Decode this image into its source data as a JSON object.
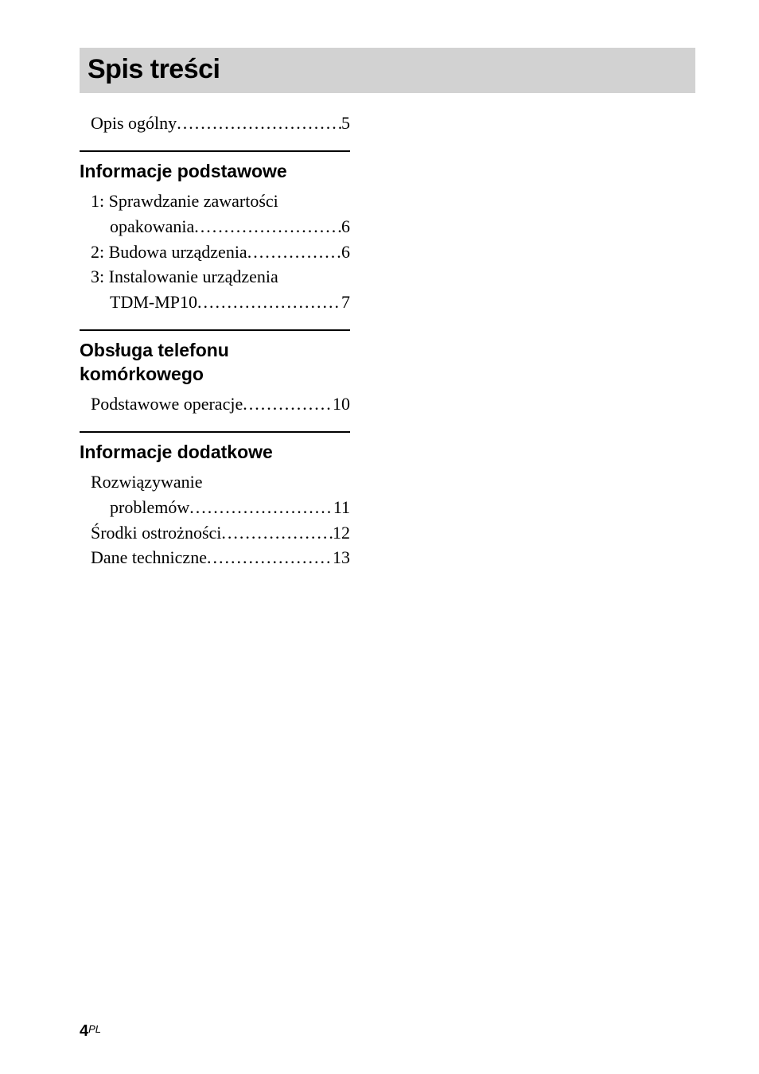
{
  "title": "Spis treści",
  "top_entry": {
    "label": "Opis ogólny",
    "page": "5"
  },
  "sections": [
    {
      "heading": "Informacje podstawowe",
      "entries": [
        {
          "lines": [
            "1: Sprawdzanie zawartości",
            "opakowania"
          ],
          "page": "6"
        },
        {
          "lines": [
            "2: Budowa urządzenia"
          ],
          "page": "6"
        },
        {
          "lines": [
            "3: Instalowanie urządzenia",
            "TDM-MP10"
          ],
          "page": "7"
        }
      ]
    },
    {
      "heading": "Obsługa telefonu komórkowego",
      "entries": [
        {
          "lines": [
            "Podstawowe operacje"
          ],
          "page": "10"
        }
      ]
    },
    {
      "heading": "Informacje dodatkowe",
      "entries": [
        {
          "lines": [
            "Rozwiązywanie",
            "problemów"
          ],
          "page": "11"
        },
        {
          "lines": [
            "Środki ostrożności"
          ],
          "page": "12"
        },
        {
          "lines": [
            "Dane techniczne"
          ],
          "page": "13"
        }
      ]
    }
  ],
  "footer": {
    "page_number": "4",
    "lang": "PL"
  },
  "colors": {
    "background": "#ffffff",
    "title_bar_bg": "#d2d2d2",
    "text": "#000000",
    "rule": "#000000"
  },
  "typography": {
    "title_font": "Arial",
    "title_size_pt": 26,
    "heading_font": "Arial",
    "heading_size_pt": 17,
    "body_font": "Times New Roman",
    "body_size_pt": 16
  }
}
